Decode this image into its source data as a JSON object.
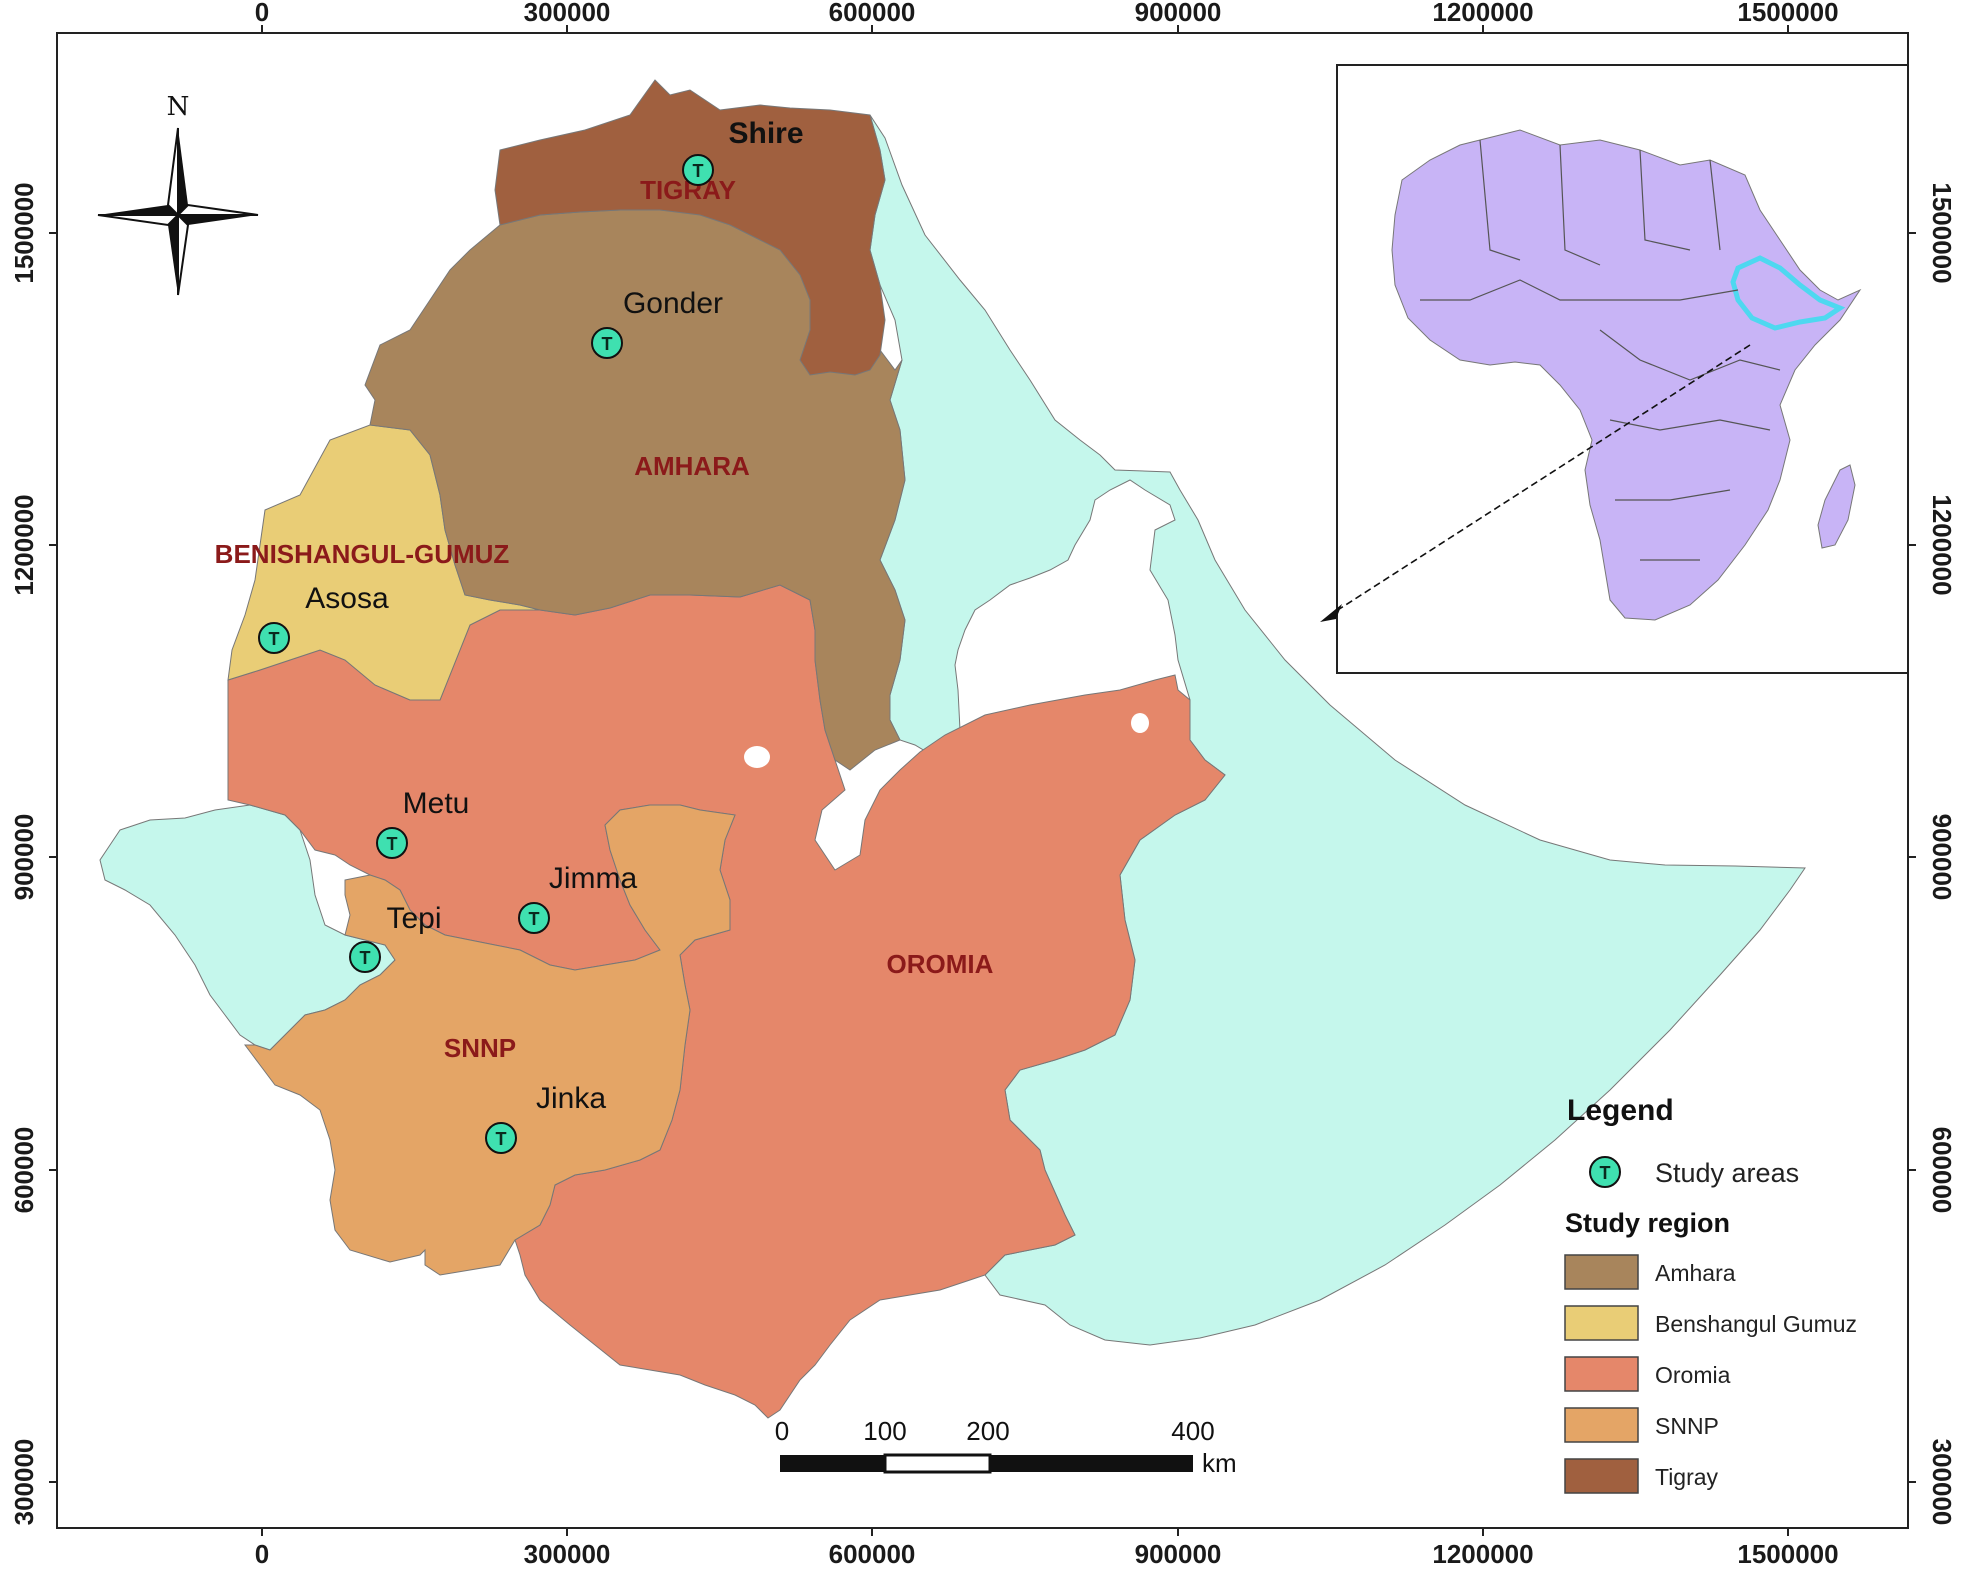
{
  "axes": {
    "x_ticks": [
      "0",
      "300000",
      "600000",
      "900000",
      "1200000",
      "1500000"
    ],
    "y_ticks": [
      "1500000",
      "1200000",
      "900000",
      "600000",
      "300000"
    ]
  },
  "north_arrow": {
    "label": "N"
  },
  "regions": [
    {
      "key": "tigray",
      "label": "TIGRAY",
      "color": "#a0603f"
    },
    {
      "key": "amhara",
      "label": "AMHARA",
      "color": "#a8855c"
    },
    {
      "key": "benishangul",
      "label": "BENISHANGUL-GUMUZ",
      "color": "#e9cd76"
    },
    {
      "key": "oromia",
      "label": "OROMIA",
      "color": "#e5876a"
    },
    {
      "key": "snnp",
      "label": "SNNP",
      "color": "#e4a566"
    }
  ],
  "other_region_color": "#c5f7ec",
  "study_areas": [
    {
      "name": "Shire",
      "marker_icon": "T"
    },
    {
      "name": "Gonder",
      "marker_icon": "T"
    },
    {
      "name": "Asosa",
      "marker_icon": "T"
    },
    {
      "name": "Metu",
      "marker_icon": "T"
    },
    {
      "name": "Jimma",
      "marker_icon": "T"
    },
    {
      "name": "Tepi",
      "marker_icon": "T"
    },
    {
      "name": "Jinka",
      "marker_icon": "T"
    }
  ],
  "marker_color": "#3fe0b0",
  "inset": {
    "fill_color": "#c8b4f6",
    "highlight_color": "#4ed8f0"
  },
  "scale_bar": {
    "labels": [
      "0",
      "100",
      "200",
      "400"
    ],
    "unit": "km"
  },
  "legend": {
    "title": "Legend",
    "study_areas_label": "Study areas",
    "study_region_title": "Study region",
    "items": [
      {
        "label": "Amhara",
        "color": "#a8855c"
      },
      {
        "label": "Benshangul Gumuz",
        "color": "#e9cd76"
      },
      {
        "label": "Oromia",
        "color": "#e5876a"
      },
      {
        "label": "SNNP",
        "color": "#e4a566"
      },
      {
        "label": "Tigray",
        "color": "#a0603f"
      }
    ]
  }
}
